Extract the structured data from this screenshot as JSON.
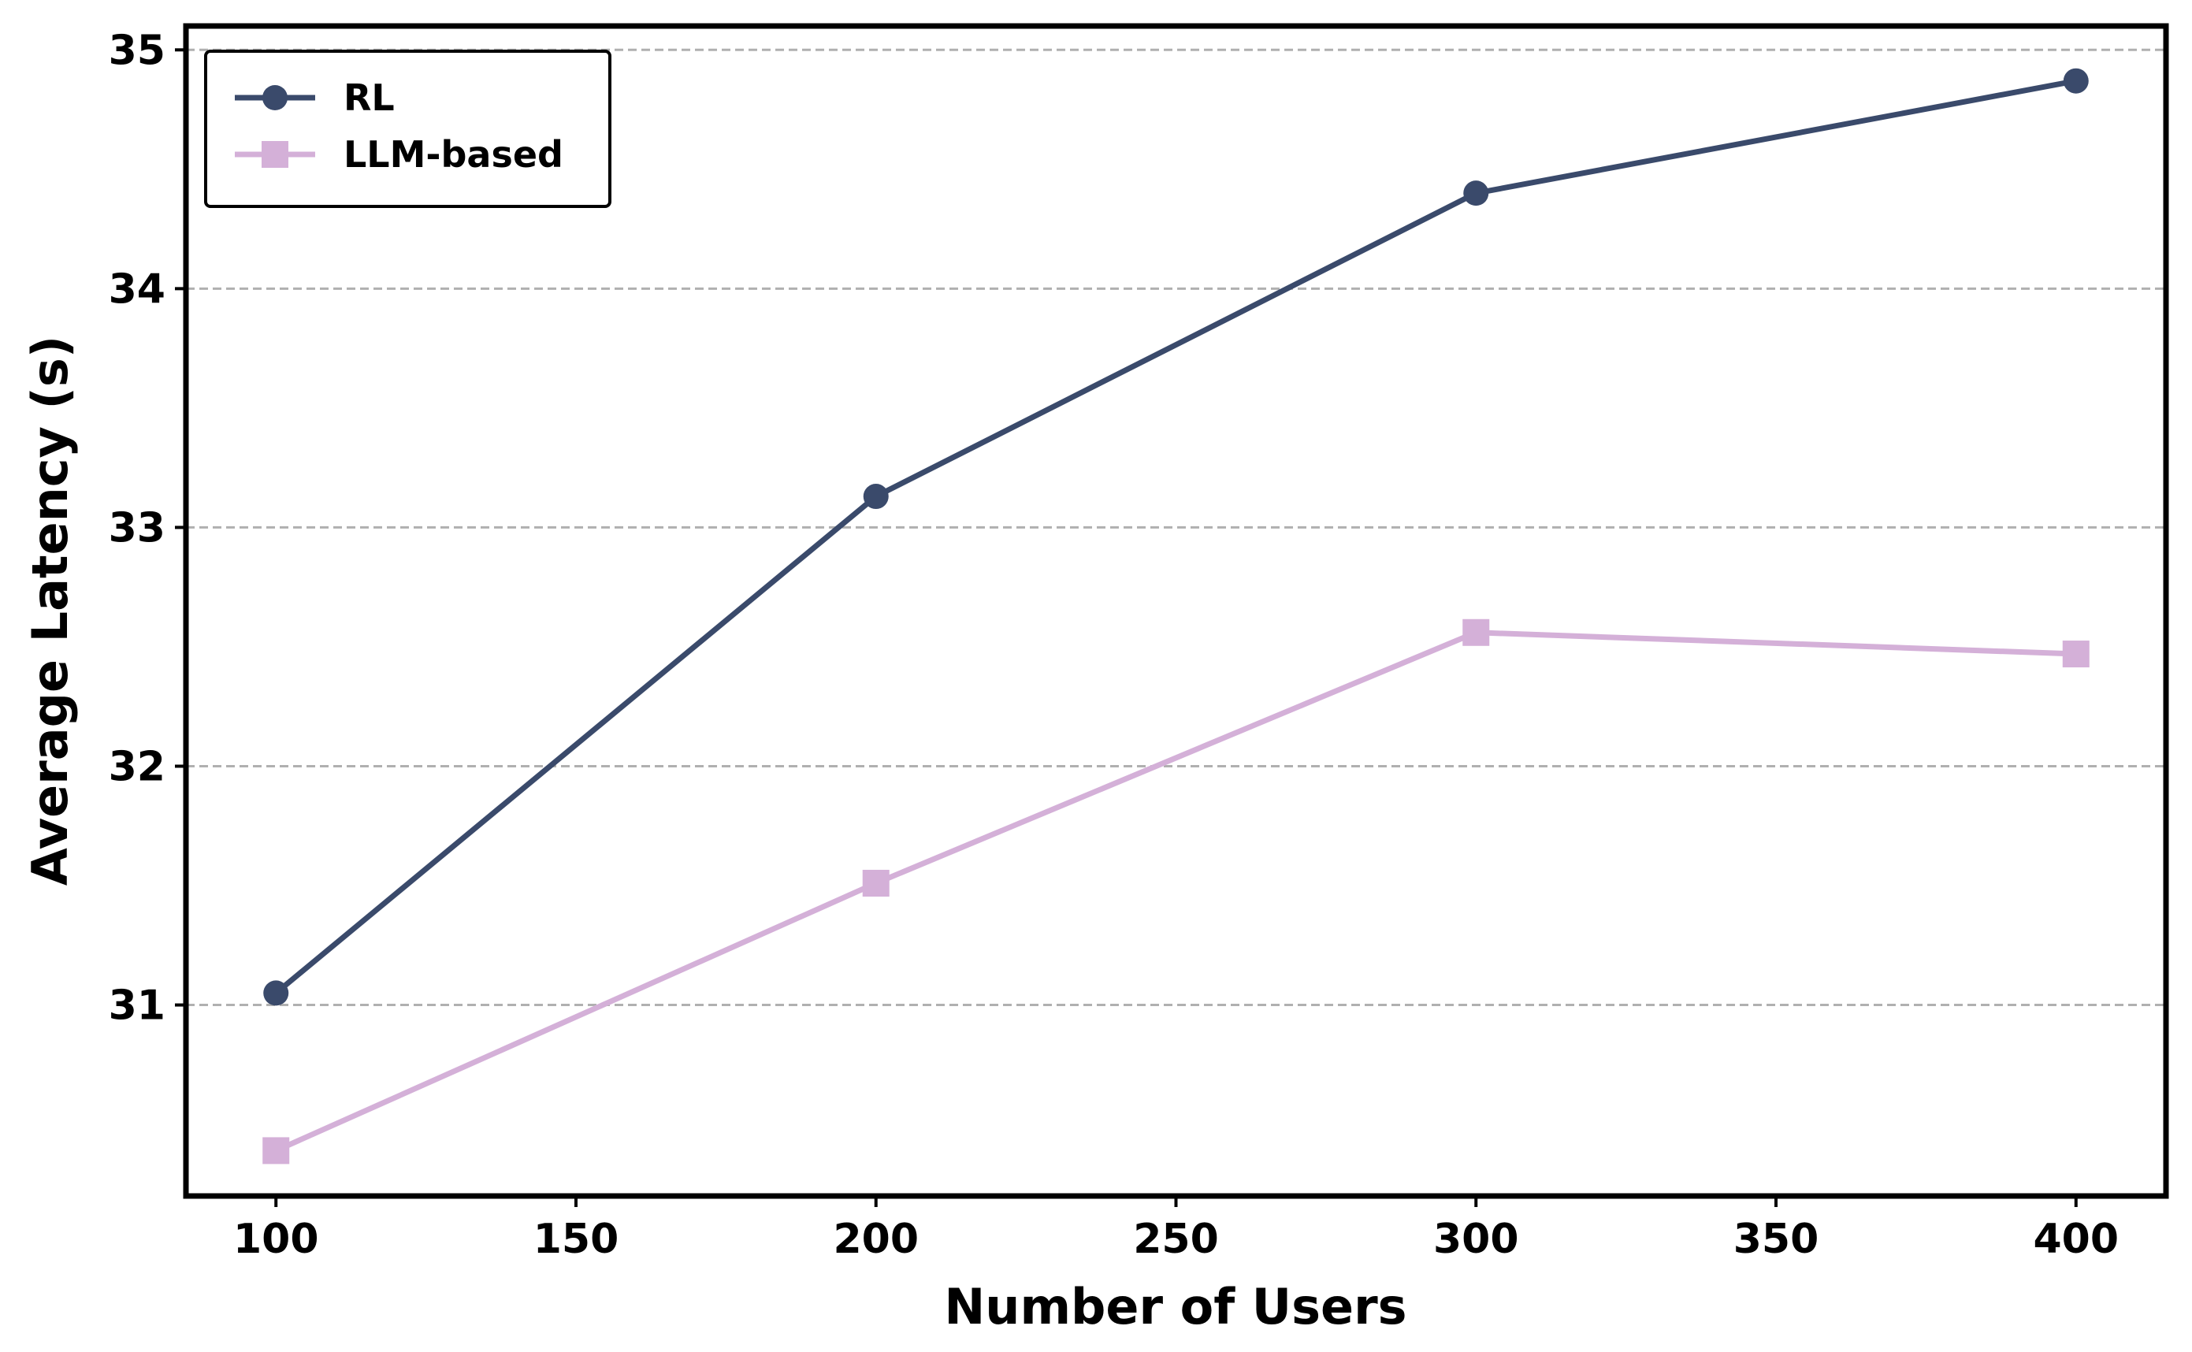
{
  "chart_data": {
    "type": "line",
    "title": "",
    "xlabel": "Number of Users",
    "ylabel": "Average Latency (s)",
    "x": [
      100,
      200,
      300,
      400
    ],
    "xlim": [
      85,
      415
    ],
    "ylim": [
      30.2,
      35.1
    ],
    "xticks": [
      100,
      150,
      200,
      250,
      300,
      350,
      400
    ],
    "yticks": [
      31,
      32,
      33,
      34,
      35
    ],
    "grid": "horizontal dashed",
    "legend_position": "top-left",
    "series": [
      {
        "name": "RL",
        "values": [
          31.05,
          33.13,
          34.4,
          34.87
        ],
        "color": "#3a4a6b",
        "marker": "circle"
      },
      {
        "name": "LLM-based",
        "values": [
          30.39,
          31.51,
          32.56,
          32.47
        ],
        "color": "#d4b0d8",
        "marker": "square"
      }
    ]
  }
}
